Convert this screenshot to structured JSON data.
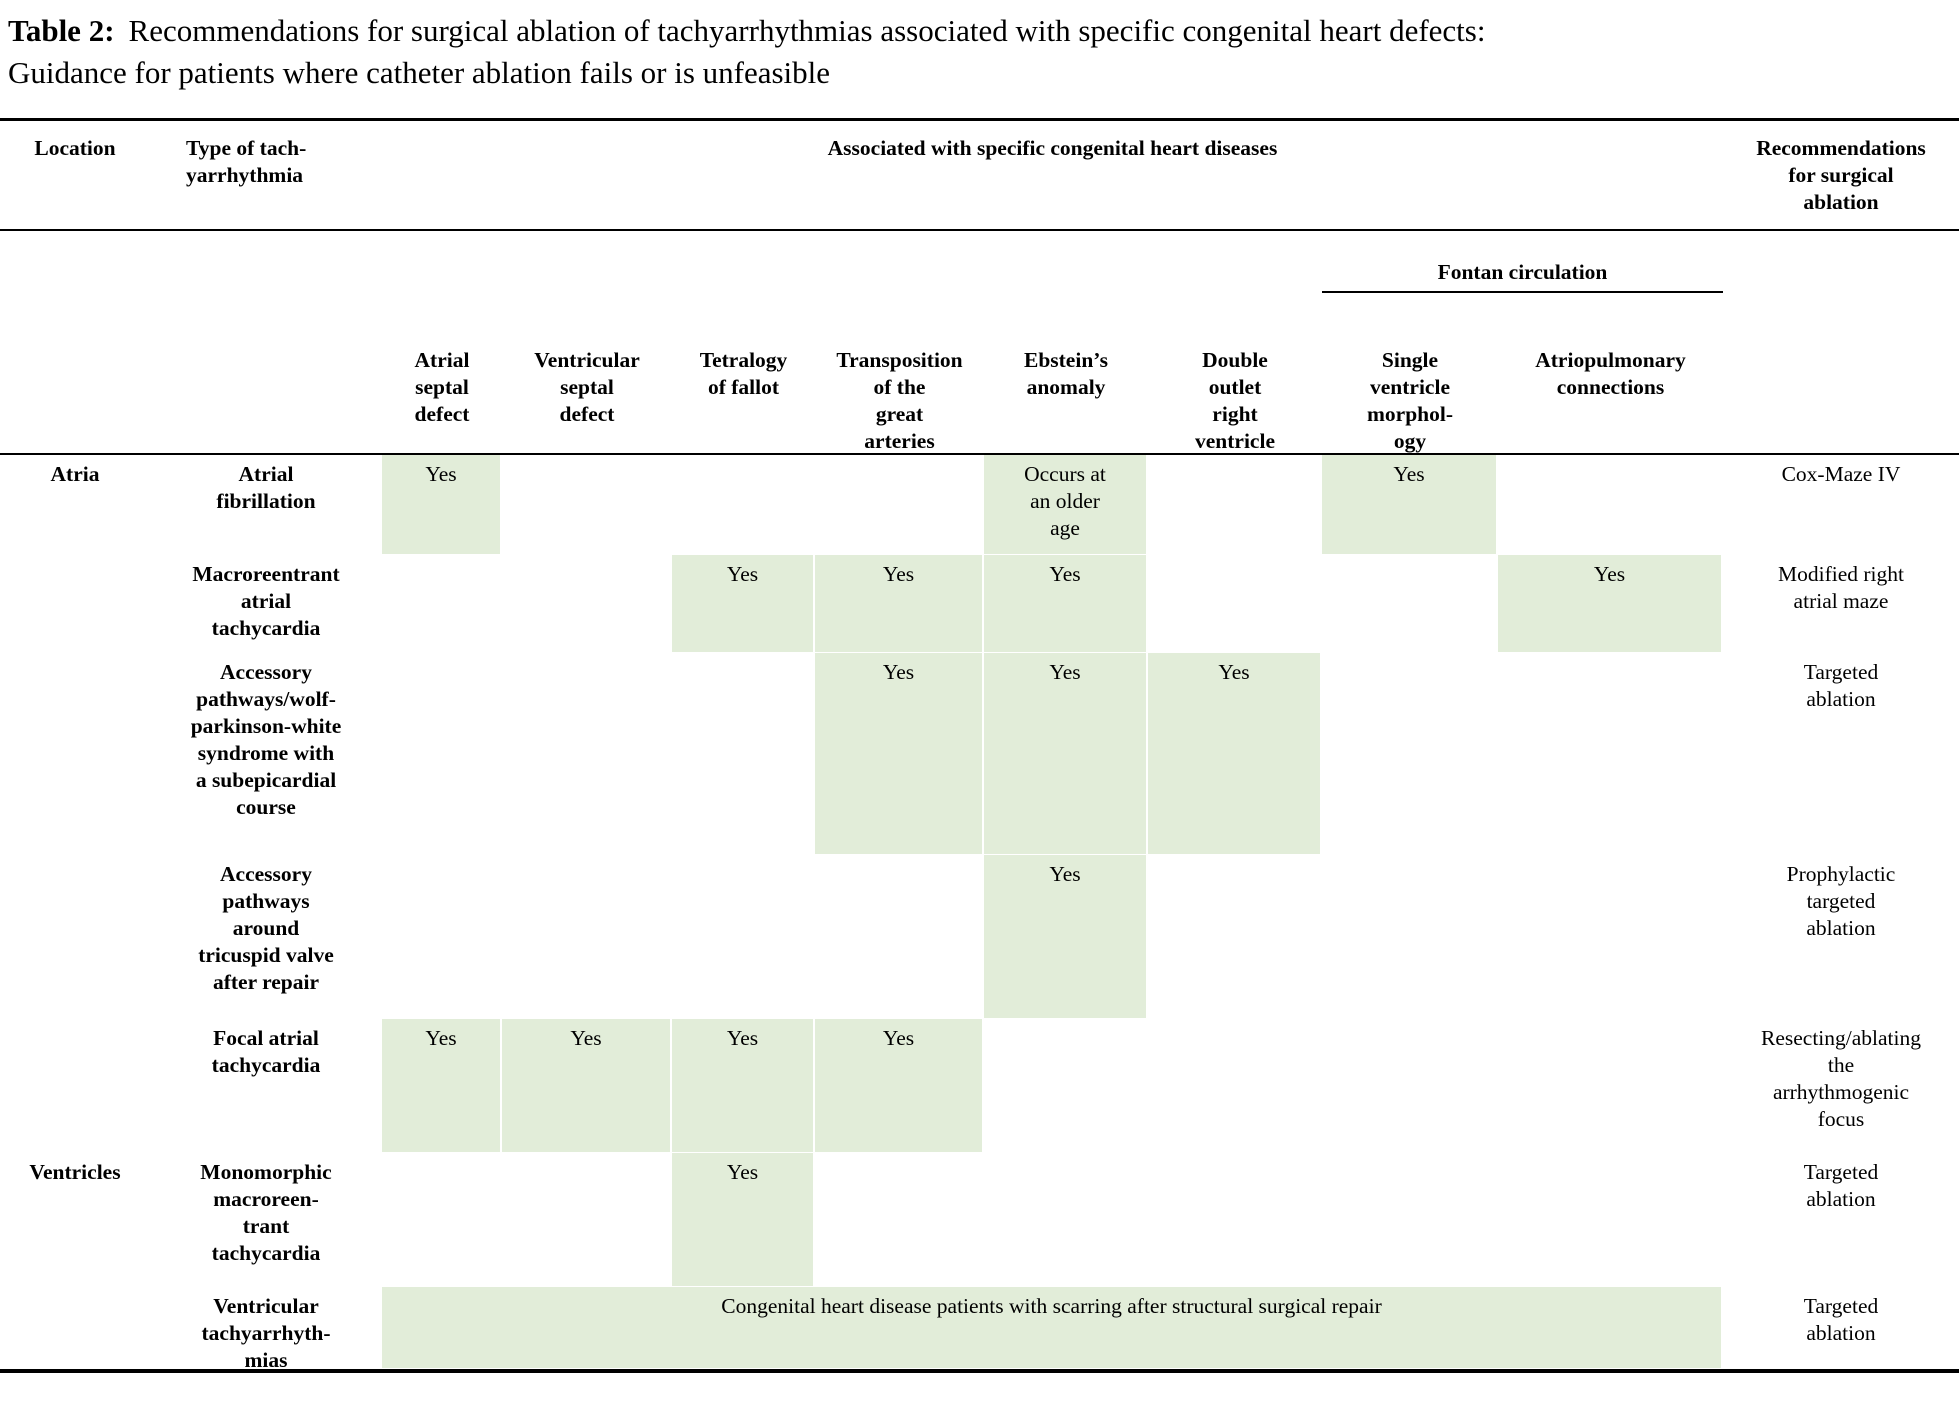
{
  "colors": {
    "highlight": "#e2edd9",
    "rule": "#000000",
    "text": "#000000",
    "background": "#ffffff"
  },
  "title": {
    "label": "Table 2:",
    "text": "Recommendations for surgical ablation of tachyarrhythmias associated with specific congenital heart defects:\nGuidance for patients where catheter ablation fails or is unfeasible"
  },
  "header": {
    "location": "Location",
    "type": "Type of tach-\nyarrhythmia",
    "associated": "Associated with specific congenital heart diseases",
    "recommendations": "Recommendations\nfor surgical\nablation",
    "fontan_group": "Fontan circulation",
    "columns": {
      "asd": "Atrial\nseptal\ndefect",
      "vsd": "Ventricular\nseptal\ndefect",
      "tof": "Tetralogy\nof fallot",
      "tga": "Transposition\nof the\ngreat\narteries",
      "ebstein": "Ebstein’s\nanomaly",
      "dorv": "Double\noutlet\nright\nventricle",
      "sv": "Single\nventricle\nmorphol-\nogy",
      "ap": "Atriopulmonary\nconnections"
    }
  },
  "rows": [
    {
      "location": "Atria",
      "type": "Atrial\nfibrillation",
      "asd": "Yes",
      "ebstein": "Occurs at\nan older\nage",
      "sv": "Yes",
      "recommendation": "Cox-Maze IV"
    },
    {
      "type": "Macroreentrant\natrial\ntachycardia",
      "tof": "Yes",
      "tga": "Yes",
      "ebstein": "Yes",
      "ap": "Yes",
      "recommendation": "Modified right\natrial maze"
    },
    {
      "type": "Accessory\npathways/wolf-\nparkinson-white\nsyndrome with\na subepicardial\ncourse",
      "tga": "Yes",
      "ebstein": "Yes",
      "dorv": "Yes",
      "recommendation": "Targeted\nablation"
    },
    {
      "type": "Accessory\npathways\naround\ntricuspid valve\nafter repair",
      "ebstein": "Yes",
      "recommendation": "Prophylactic\ntargeted\nablation"
    },
    {
      "type": "Focal atrial\ntachycardia",
      "asd": "Yes",
      "vsd": "Yes",
      "tof": "Yes",
      "tga": "Yes",
      "recommendation": "Resecting/ablating\nthe\narrhythmogenic\nfocus"
    },
    {
      "location": "Ventricles",
      "type": "Monomorphic\nmacroreen-\ntrant\ntachycardia",
      "tof": "Yes",
      "recommendation": "Targeted\nablation"
    },
    {
      "type": "Ventricular\ntachyarrhyth-\nmias",
      "span_text": "Congenital heart disease patients with scarring after structural surgical repair",
      "recommendation": "Targeted\nablation"
    }
  ]
}
